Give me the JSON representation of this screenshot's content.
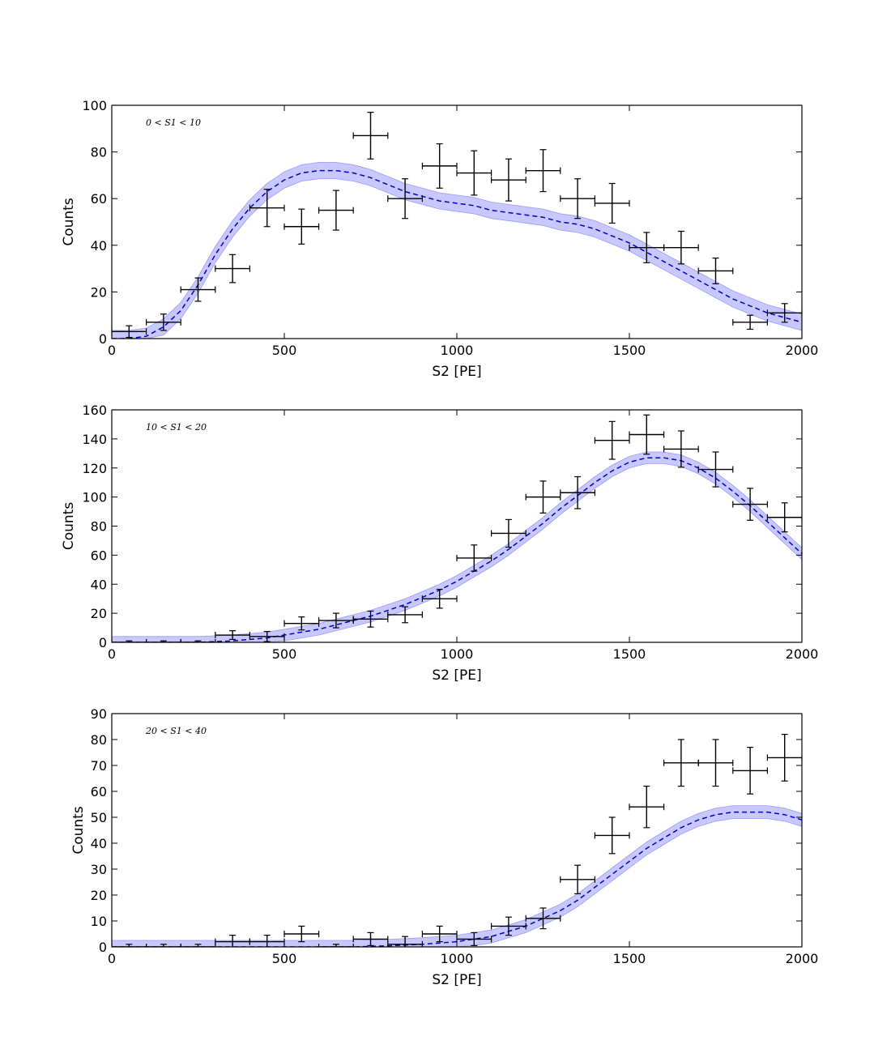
{
  "chart_data": [
    {
      "type": "line",
      "annotation": "0 < S1 < 10",
      "xlabel": "S2 [PE]",
      "ylabel": "Counts",
      "xlim": [
        0,
        2000
      ],
      "ylim": [
        0,
        100
      ],
      "xticks": [
        0,
        500,
        1000,
        1500,
        2000
      ],
      "yticks": [
        0,
        20,
        40,
        60,
        80,
        100
      ],
      "grid": false,
      "colors": {
        "model_line": "#0000cc",
        "model_band": "#aaaaff",
        "data": "#000000"
      },
      "bin_half_width": 50,
      "data_points": {
        "x": [
          50,
          150,
          250,
          350,
          450,
          550,
          650,
          750,
          850,
          950,
          1050,
          1150,
          1250,
          1350,
          1450,
          1550,
          1650,
          1750,
          1850,
          1950
        ],
        "y": [
          3,
          7,
          21,
          30,
          56,
          48,
          55,
          87,
          60,
          74,
          71,
          68,
          72,
          60,
          58,
          39,
          39,
          29,
          7,
          11
        ],
        "yerr": [
          2.5,
          3.5,
          5,
          6,
          8,
          7.5,
          8.5,
          10,
          8.5,
          9.5,
          9.5,
          9,
          9,
          8.5,
          8.5,
          6.5,
          7,
          5.5,
          3,
          4
        ]
      },
      "model": {
        "x": [
          0,
          50,
          100,
          150,
          200,
          250,
          300,
          350,
          400,
          450,
          500,
          550,
          600,
          650,
          700,
          750,
          800,
          850,
          900,
          950,
          1000,
          1050,
          1100,
          1150,
          1200,
          1250,
          1300,
          1350,
          1400,
          1450,
          1500,
          1550,
          1600,
          1650,
          1700,
          1750,
          1800,
          1850,
          1900,
          1950,
          2000
        ],
        "y": [
          0,
          0,
          1,
          5,
          12,
          23,
          36,
          47,
          56,
          63,
          68,
          71,
          72,
          72,
          71,
          69,
          66,
          63,
          61,
          59,
          58,
          57,
          55,
          54,
          53,
          52,
          50,
          49,
          47,
          44,
          41,
          37,
          33,
          29,
          25,
          21,
          17,
          14,
          11,
          9,
          7
        ],
        "band": 3.5
      }
    },
    {
      "type": "line",
      "annotation": "10 < S1 < 20",
      "xlabel": "S2 [PE]",
      "ylabel": "Counts",
      "xlim": [
        0,
        2000
      ],
      "ylim": [
        0,
        160
      ],
      "xticks": [
        0,
        500,
        1000,
        1500,
        2000
      ],
      "yticks": [
        0,
        20,
        40,
        60,
        80,
        100,
        120,
        140,
        160
      ],
      "grid": false,
      "colors": {
        "model_line": "#0000cc",
        "model_band": "#aaaaff",
        "data": "#000000"
      },
      "bin_half_width": 50,
      "data_points": {
        "x": [
          50,
          150,
          250,
          350,
          450,
          550,
          650,
          750,
          850,
          950,
          1050,
          1150,
          1250,
          1350,
          1450,
          1550,
          1650,
          1750,
          1850,
          1950
        ],
        "y": [
          0,
          0,
          0,
          5,
          4,
          13,
          15,
          16,
          19,
          30,
          58,
          75,
          100,
          103,
          139,
          143,
          133,
          119,
          95,
          86
        ],
        "yerr": [
          1,
          1,
          1,
          3,
          3.5,
          4.5,
          5,
          5.5,
          5.5,
          6.5,
          9,
          9.5,
          11,
          11,
          13,
          13.5,
          12.5,
          12,
          11,
          10
        ]
      },
      "model": {
        "x": [
          0,
          50,
          100,
          150,
          200,
          250,
          300,
          350,
          400,
          450,
          500,
          550,
          600,
          650,
          700,
          750,
          800,
          850,
          900,
          950,
          1000,
          1050,
          1100,
          1150,
          1200,
          1250,
          1300,
          1350,
          1400,
          1450,
          1500,
          1550,
          1600,
          1650,
          1700,
          1750,
          1800,
          1850,
          1900,
          1950,
          2000
        ],
        "y": [
          0,
          0,
          0,
          0,
          0,
          0,
          0.5,
          1,
          2,
          3,
          5,
          7,
          9,
          12,
          15,
          18,
          22,
          26,
          31,
          36,
          42,
          49,
          56,
          64,
          73,
          82,
          92,
          101,
          110,
          118,
          124,
          127,
          127,
          125,
          120,
          113,
          104,
          94,
          83,
          72,
          61
        ],
        "band": 4
      }
    },
    {
      "type": "line",
      "annotation": "20 < S1 < 40",
      "xlabel": "S2 [PE]",
      "ylabel": "Counts",
      "xlim": [
        0,
        2000
      ],
      "ylim": [
        0,
        90
      ],
      "xticks": [
        0,
        500,
        1000,
        1500,
        2000
      ],
      "yticks": [
        0,
        10,
        20,
        30,
        40,
        50,
        60,
        70,
        80,
        90
      ],
      "grid": false,
      "colors": {
        "model_line": "#0000cc",
        "model_band": "#aaaaff",
        "data": "#000000"
      },
      "bin_half_width": 50,
      "data_points": {
        "x": [
          50,
          150,
          250,
          350,
          450,
          550,
          650,
          750,
          850,
          950,
          1050,
          1150,
          1250,
          1350,
          1450,
          1550,
          1650,
          1750,
          1850,
          1950
        ],
        "y": [
          0,
          0,
          0,
          2,
          2,
          5,
          0,
          3,
          1,
          5,
          3,
          8,
          11,
          26,
          43,
          54,
          71,
          71,
          68,
          73
        ],
        "yerr": [
          1,
          1,
          1,
          2.5,
          2.5,
          3,
          1,
          2.5,
          3,
          3,
          2.5,
          3.5,
          4,
          5.5,
          7,
          8,
          9,
          9,
          9,
          9
        ]
      },
      "model": {
        "x": [
          0,
          50,
          100,
          150,
          200,
          250,
          300,
          350,
          400,
          450,
          500,
          550,
          600,
          650,
          700,
          750,
          800,
          850,
          900,
          950,
          1000,
          1050,
          1100,
          1150,
          1200,
          1250,
          1300,
          1350,
          1400,
          1450,
          1500,
          1550,
          1600,
          1650,
          1700,
          1750,
          1800,
          1850,
          1900,
          1950,
          2000
        ],
        "y": [
          0,
          0,
          0,
          0,
          0,
          0,
          0,
          0,
          0,
          0,
          0,
          0,
          0,
          0,
          0,
          0.2,
          0.4,
          0.7,
          1,
          1.5,
          2,
          3,
          4,
          6,
          8,
          11,
          14,
          18,
          23,
          28,
          33,
          38,
          42,
          46,
          49,
          51,
          52,
          52,
          52,
          51,
          49
        ],
        "band": 2.5
      }
    }
  ]
}
